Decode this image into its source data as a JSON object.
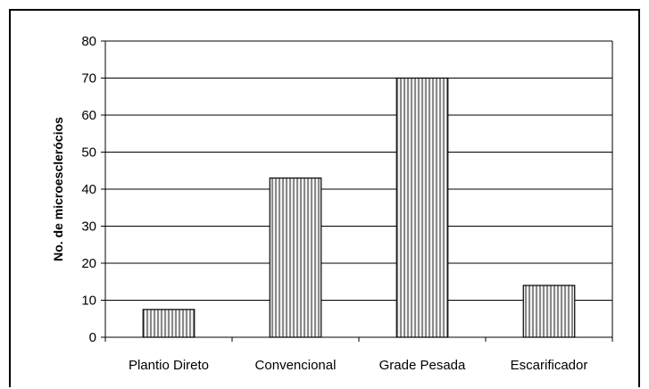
{
  "chart_data": {
    "type": "bar",
    "title": "",
    "xlabel": "",
    "ylabel": "No. de microescleróciosс",
    "ylim": [
      0,
      80
    ],
    "yticks": [
      0,
      10,
      20,
      30,
      40,
      50,
      60,
      70,
      80
    ],
    "categories": [
      "Plantio Direto",
      "Convencional",
      "Grade Pesada",
      "Escarificador"
    ],
    "values": [
      7.5,
      43,
      70,
      14
    ],
    "grid": true,
    "legend": "none",
    "bar_fill": "vertical-hatch",
    "colors": {
      "bar_stroke": "#000000",
      "hatch_light": "#f2f2f2",
      "hatch_dark": "#8a8a8a",
      "grid": "#000000"
    }
  }
}
